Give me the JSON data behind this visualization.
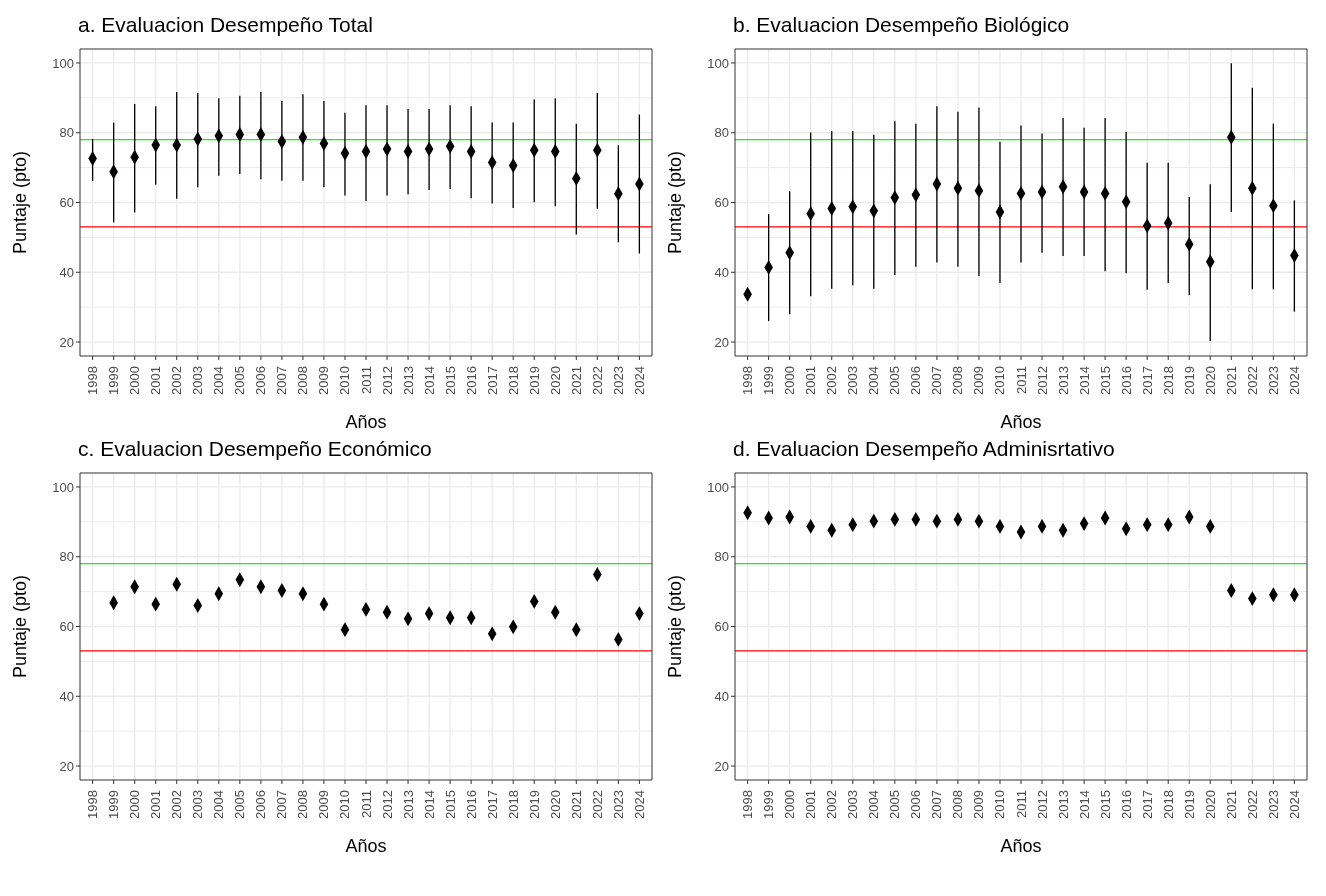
{
  "chart_data": [
    {
      "type": "scatter",
      "title": "a. Evaluacion Desempeño Total",
      "xlabel": "Años",
      "ylabel": "Puntaje (pto)",
      "color": "#000000",
      "marker": "diamond",
      "grid": true,
      "ylim": [
        16,
        104
      ],
      "yticks": [
        20,
        40,
        60,
        80,
        100
      ],
      "categories": [
        "1998",
        "1999",
        "2000",
        "2001",
        "2002",
        "2003",
        "2004",
        "2005",
        "2006",
        "2007",
        "2008",
        "2009",
        "2010",
        "2011",
        "2012",
        "2013",
        "2014",
        "2015",
        "2016",
        "2017",
        "2018",
        "2019",
        "2020",
        "2021",
        "2022",
        "2023",
        "2024"
      ],
      "values": [
        72.6,
        68.8,
        73.0,
        76.5,
        76.5,
        78.2,
        79.1,
        79.5,
        79.5,
        77.5,
        78.7,
        76.9,
        74.1,
        74.6,
        75.3,
        74.6,
        75.3,
        76.1,
        74.6,
        71.5,
        70.6,
        75.0,
        74.6,
        66.9,
        75.0,
        62.5,
        65.3
      ],
      "errors": [
        [
          66.2,
          78.2
        ],
        [
          54.3,
          82.9
        ],
        [
          57.1,
          88.2
        ],
        [
          65.1,
          87.6
        ],
        [
          61.1,
          91.7
        ],
        [
          64.4,
          91.4
        ],
        [
          67.7,
          89.9
        ],
        [
          68.2,
          90.6
        ],
        [
          66.7,
          91.7
        ],
        [
          66.2,
          89.1
        ],
        [
          66.2,
          91.0
        ],
        [
          64.4,
          89.1
        ],
        [
          62.0,
          85.7
        ],
        [
          60.4,
          87.9
        ],
        [
          62.0,
          87.9
        ],
        [
          62.4,
          86.8
        ],
        [
          63.6,
          86.8
        ],
        [
          63.9,
          87.9
        ],
        [
          61.2,
          87.6
        ],
        [
          59.7,
          82.9
        ],
        [
          58.4,
          82.9
        ],
        [
          60.1,
          89.5
        ],
        [
          58.9,
          89.9
        ],
        [
          50.8,
          82.6
        ],
        [
          58.2,
          91.4
        ],
        [
          48.6,
          76.4
        ],
        [
          45.4,
          85.2
        ]
      ],
      "ref_lines": [
        {
          "axis": "y",
          "value": 78,
          "color": "#00ff00"
        },
        {
          "axis": "y",
          "value": 53,
          "color": "#ff0000"
        }
      ]
    },
    {
      "type": "scatter",
      "title": "b. Evaluacion Desempeño Biológico",
      "xlabel": "Años",
      "ylabel": "Puntaje (pto)",
      "color": "#000000",
      "marker": "diamond",
      "grid": true,
      "ylim": [
        16,
        104
      ],
      "yticks": [
        20,
        40,
        60,
        80,
        100
      ],
      "categories": [
        "1998",
        "1999",
        "2000",
        "2001",
        "2002",
        "2003",
        "2004",
        "2005",
        "2006",
        "2007",
        "2008",
        "2009",
        "2010",
        "2011",
        "2012",
        "2013",
        "2014",
        "2015",
        "2016",
        "2017",
        "2018",
        "2019",
        "2020",
        "2021",
        "2022",
        "2023",
        "2024"
      ],
      "values": [
        33.7,
        41.4,
        45.6,
        56.8,
        58.3,
        58.8,
        57.6,
        61.4,
        62.2,
        65.3,
        64.1,
        63.4,
        57.3,
        62.6,
        63.0,
        64.5,
        63.0,
        62.6,
        60.2,
        53.3,
        54.1,
        48.0,
        43.0,
        78.7,
        64.1,
        59.1,
        44.8
      ],
      "errors": [
        null,
        [
          26.0,
          56.7
        ],
        [
          28.0,
          63.2
        ],
        [
          33.1,
          80.1
        ],
        [
          35.3,
          80.5
        ],
        [
          36.3,
          80.5
        ],
        [
          35.3,
          79.4
        ],
        [
          39.2,
          83.3
        ],
        [
          41.6,
          82.6
        ],
        [
          42.8,
          87.6
        ],
        [
          41.6,
          86.0
        ],
        [
          38.9,
          87.2
        ],
        [
          36.9,
          77.4
        ],
        [
          42.8,
          82.1
        ],
        [
          45.6,
          79.8
        ],
        [
          44.7,
          84.2
        ],
        [
          44.7,
          81.4
        ],
        [
          40.3,
          84.2
        ],
        [
          39.7,
          80.2
        ],
        [
          35.0,
          71.4
        ],
        [
          36.9,
          71.4
        ],
        [
          33.5,
          61.6
        ],
        [
          20.3,
          65.2
        ],
        [
          57.3,
          99.9
        ],
        [
          35.1,
          92.9
        ],
        [
          35.1,
          82.6
        ],
        [
          28.7,
          60.6
        ]
      ],
      "ref_lines": [
        {
          "axis": "y",
          "value": 78,
          "color": "#00ff00"
        },
        {
          "axis": "y",
          "value": 53,
          "color": "#ff0000"
        }
      ]
    },
    {
      "type": "scatter",
      "title": "c. Evaluacion Desempeño Económico",
      "xlabel": "Años",
      "ylabel": "Puntaje (pto)",
      "color": "#000000",
      "marker": "diamond",
      "grid": true,
      "ylim": [
        16,
        104
      ],
      "yticks": [
        20,
        40,
        60,
        80,
        100
      ],
      "categories": [
        "1998",
        "1999",
        "2000",
        "2001",
        "2002",
        "2003",
        "2004",
        "2005",
        "2006",
        "2007",
        "2008",
        "2009",
        "2010",
        "2011",
        "2012",
        "2013",
        "2014",
        "2015",
        "2016",
        "2017",
        "2018",
        "2019",
        "2020",
        "2021",
        "2022",
        "2023",
        "2024"
      ],
      "values": [
        null,
        66.8,
        71.4,
        66.4,
        72.1,
        66.0,
        69.4,
        73.4,
        71.4,
        70.3,
        69.4,
        66.4,
        59.1,
        64.9,
        64.1,
        62.2,
        63.7,
        62.5,
        62.5,
        57.9,
        59.9,
        67.2,
        64.1,
        59.1,
        74.9,
        56.3,
        63.7
      ],
      "ref_lines": [
        {
          "axis": "y",
          "value": 78,
          "color": "#00ff00"
        },
        {
          "axis": "y",
          "value": 53,
          "color": "#ff0000"
        }
      ]
    },
    {
      "type": "scatter",
      "title": "d. Evaluacion Desempeño Adminisrtativo",
      "xlabel": "Años",
      "ylabel": "Puntaje (pto)",
      "color": "#000000",
      "marker": "diamond",
      "grid": true,
      "ylim": [
        16,
        104
      ],
      "yticks": [
        20,
        40,
        60,
        80,
        100
      ],
      "categories": [
        "1998",
        "1999",
        "2000",
        "2001",
        "2002",
        "2003",
        "2004",
        "2005",
        "2006",
        "2007",
        "2008",
        "2009",
        "2010",
        "2011",
        "2012",
        "2013",
        "2014",
        "2015",
        "2016",
        "2017",
        "2018",
        "2019",
        "2020",
        "2021",
        "2022",
        "2023",
        "2024"
      ],
      "values": [
        92.6,
        91.1,
        91.4,
        88.7,
        87.6,
        89.2,
        90.2,
        90.7,
        90.7,
        90.2,
        90.7,
        90.2,
        88.7,
        87.1,
        88.7,
        87.6,
        89.5,
        91.1,
        88.0,
        89.2,
        89.2,
        91.4,
        88.7,
        70.3,
        68.0,
        69.1,
        69.1
      ],
      "ref_lines": [
        {
          "axis": "y",
          "value": 78,
          "color": "#00ff00"
        },
        {
          "axis": "y",
          "value": 53,
          "color": "#ff0000"
        }
      ]
    }
  ]
}
